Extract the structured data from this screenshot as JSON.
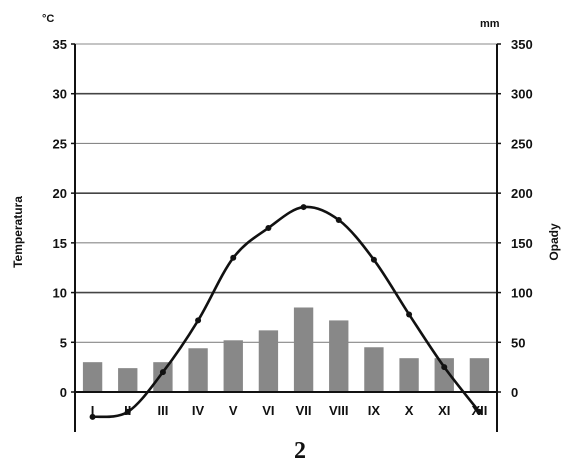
{
  "chart_data": {
    "type": "bar",
    "categories": [
      "I",
      "II",
      "III",
      "IV",
      "V",
      "VI",
      "VII",
      "VIII",
      "IX",
      "X",
      "XI",
      "XII"
    ],
    "series": [
      {
        "type": "bar",
        "axis": "right",
        "values": [
          30,
          24,
          30,
          44,
          52,
          62,
          85,
          72,
          45,
          34,
          34,
          34
        ],
        "color": "#888888"
      },
      {
        "type": "line",
        "axis": "left",
        "values": [
          -2.5,
          -2,
          2,
          7.2,
          13.5,
          16.5,
          18.6,
          17.3,
          13.3,
          7.8,
          2.5,
          -2
        ],
        "color": "#111111"
      }
    ],
    "y_left": {
      "label": "Temperatura",
      "unit": "°C",
      "range": [
        0,
        35
      ],
      "ticks": [
        0,
        5,
        10,
        15,
        20,
        25,
        30,
        35
      ]
    },
    "y_right": {
      "label": "Opady",
      "unit": "mm",
      "range": [
        0,
        350
      ],
      "ticks": [
        0,
        50,
        100,
        150,
        200,
        250,
        300,
        350
      ]
    },
    "grid": true,
    "legend": "none"
  },
  "caption": "2"
}
